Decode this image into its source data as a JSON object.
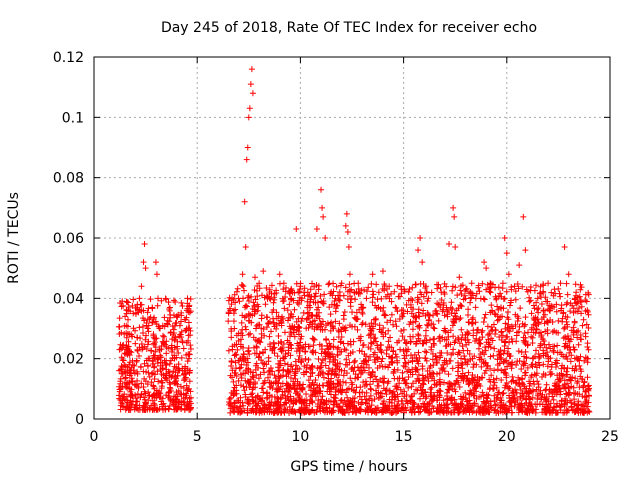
{
  "chart_data": {
    "type": "scatter",
    "title": "Day 245 of 2018, Rate Of TEC Index for receiver echo",
    "xlabel": "GPS time / hours",
    "ylabel": "ROTI / TECUs",
    "xlim": [
      0,
      25
    ],
    "ylim": [
      0,
      0.12
    ],
    "xticks": [
      0,
      5,
      10,
      15,
      20,
      25
    ],
    "yticks": [
      0,
      0.02,
      0.04,
      0.06,
      0.08,
      0.1,
      0.12
    ],
    "xtick_labels": [
      "0",
      "5",
      "10",
      "15",
      "20",
      "25"
    ],
    "ytick_labels": [
      "0",
      "0.02",
      "0.04",
      "0.06",
      "0.08",
      "0.1",
      "0.12"
    ],
    "grid": true,
    "marker": "+",
    "series_color": "#ff0000",
    "segments": [
      {
        "x": [
          1.2,
          4.7
        ],
        "y_range": [
          0.003,
          0.04
        ]
      },
      {
        "x": [
          6.5,
          24.0
        ],
        "y_range": [
          0.002,
          0.045
        ]
      }
    ],
    "points": [
      [
        1.3,
        0.01
      ],
      [
        1.4,
        0.015
      ],
      [
        1.5,
        0.012
      ],
      [
        1.6,
        0.022
      ],
      [
        1.7,
        0.018
      ],
      [
        1.8,
        0.028
      ],
      [
        1.9,
        0.035
      ],
      [
        2.0,
        0.025
      ],
      [
        2.1,
        0.038
      ],
      [
        2.2,
        0.04
      ],
      [
        2.3,
        0.044
      ],
      [
        2.4,
        0.052
      ],
      [
        2.45,
        0.058
      ],
      [
        2.5,
        0.05
      ],
      [
        2.6,
        0.03
      ],
      [
        2.7,
        0.02
      ],
      [
        2.8,
        0.015
      ],
      [
        2.9,
        0.025
      ],
      [
        3.0,
        0.052
      ],
      [
        3.05,
        0.048
      ],
      [
        3.1,
        0.04
      ],
      [
        3.2,
        0.03
      ],
      [
        3.5,
        0.015
      ],
      [
        3.7,
        0.01
      ],
      [
        3.9,
        0.02
      ],
      [
        4.0,
        0.034
      ],
      [
        4.2,
        0.028
      ],
      [
        4.4,
        0.033
      ],
      [
        4.5,
        0.036
      ],
      [
        4.6,
        0.02
      ],
      [
        6.6,
        0.036
      ],
      [
        6.8,
        0.03
      ],
      [
        7.0,
        0.04
      ],
      [
        7.2,
        0.048
      ],
      [
        7.3,
        0.072
      ],
      [
        7.35,
        0.057
      ],
      [
        7.4,
        0.086
      ],
      [
        7.45,
        0.09
      ],
      [
        7.5,
        0.1
      ],
      [
        7.55,
        0.103
      ],
      [
        7.6,
        0.111
      ],
      [
        7.65,
        0.116
      ],
      [
        7.7,
        0.108
      ],
      [
        7.8,
        0.047
      ],
      [
        8.0,
        0.045
      ],
      [
        8.2,
        0.049
      ],
      [
        8.5,
        0.04
      ],
      [
        9.0,
        0.048
      ],
      [
        9.2,
        0.045
      ],
      [
        9.5,
        0.042
      ],
      [
        9.8,
        0.063
      ],
      [
        10.0,
        0.044
      ],
      [
        10.2,
        0.041
      ],
      [
        10.5,
        0.043
      ],
      [
        10.8,
        0.063
      ],
      [
        11.0,
        0.076
      ],
      [
        11.05,
        0.07
      ],
      [
        11.1,
        0.067
      ],
      [
        11.2,
        0.06
      ],
      [
        11.4,
        0.045
      ],
      [
        11.7,
        0.04
      ],
      [
        12.0,
        0.045
      ],
      [
        12.2,
        0.064
      ],
      [
        12.25,
        0.068
      ],
      [
        12.3,
        0.062
      ],
      [
        12.35,
        0.057
      ],
      [
        12.4,
        0.048
      ],
      [
        12.8,
        0.045
      ],
      [
        13.2,
        0.04
      ],
      [
        13.5,
        0.048
      ],
      [
        13.8,
        0.042
      ],
      [
        14.0,
        0.049
      ],
      [
        14.3,
        0.044
      ],
      [
        14.6,
        0.037
      ],
      [
        15.0,
        0.035
      ],
      [
        15.4,
        0.035
      ],
      [
        15.7,
        0.056
      ],
      [
        15.8,
        0.06
      ],
      [
        15.9,
        0.052
      ],
      [
        16.2,
        0.04
      ],
      [
        16.6,
        0.035
      ],
      [
        17.0,
        0.03
      ],
      [
        17.2,
        0.058
      ],
      [
        17.4,
        0.07
      ],
      [
        17.45,
        0.067
      ],
      [
        17.5,
        0.057
      ],
      [
        17.7,
        0.047
      ],
      [
        18.0,
        0.04
      ],
      [
        18.3,
        0.045
      ],
      [
        18.5,
        0.04
      ],
      [
        18.9,
        0.052
      ],
      [
        19.0,
        0.05
      ],
      [
        19.2,
        0.045
      ],
      [
        19.5,
        0.04
      ],
      [
        19.9,
        0.06
      ],
      [
        20.0,
        0.055
      ],
      [
        20.1,
        0.048
      ],
      [
        20.3,
        0.03
      ],
      [
        20.6,
        0.051
      ],
      [
        20.8,
        0.067
      ],
      [
        20.9,
        0.056
      ],
      [
        21.2,
        0.035
      ],
      [
        21.5,
        0.04
      ],
      [
        22.0,
        0.045
      ],
      [
        22.4,
        0.038
      ],
      [
        22.6,
        0.045
      ],
      [
        22.8,
        0.057
      ],
      [
        23.0,
        0.048
      ],
      [
        23.3,
        0.04
      ],
      [
        23.6,
        0.035
      ],
      [
        23.9,
        0.02
      ]
    ]
  }
}
